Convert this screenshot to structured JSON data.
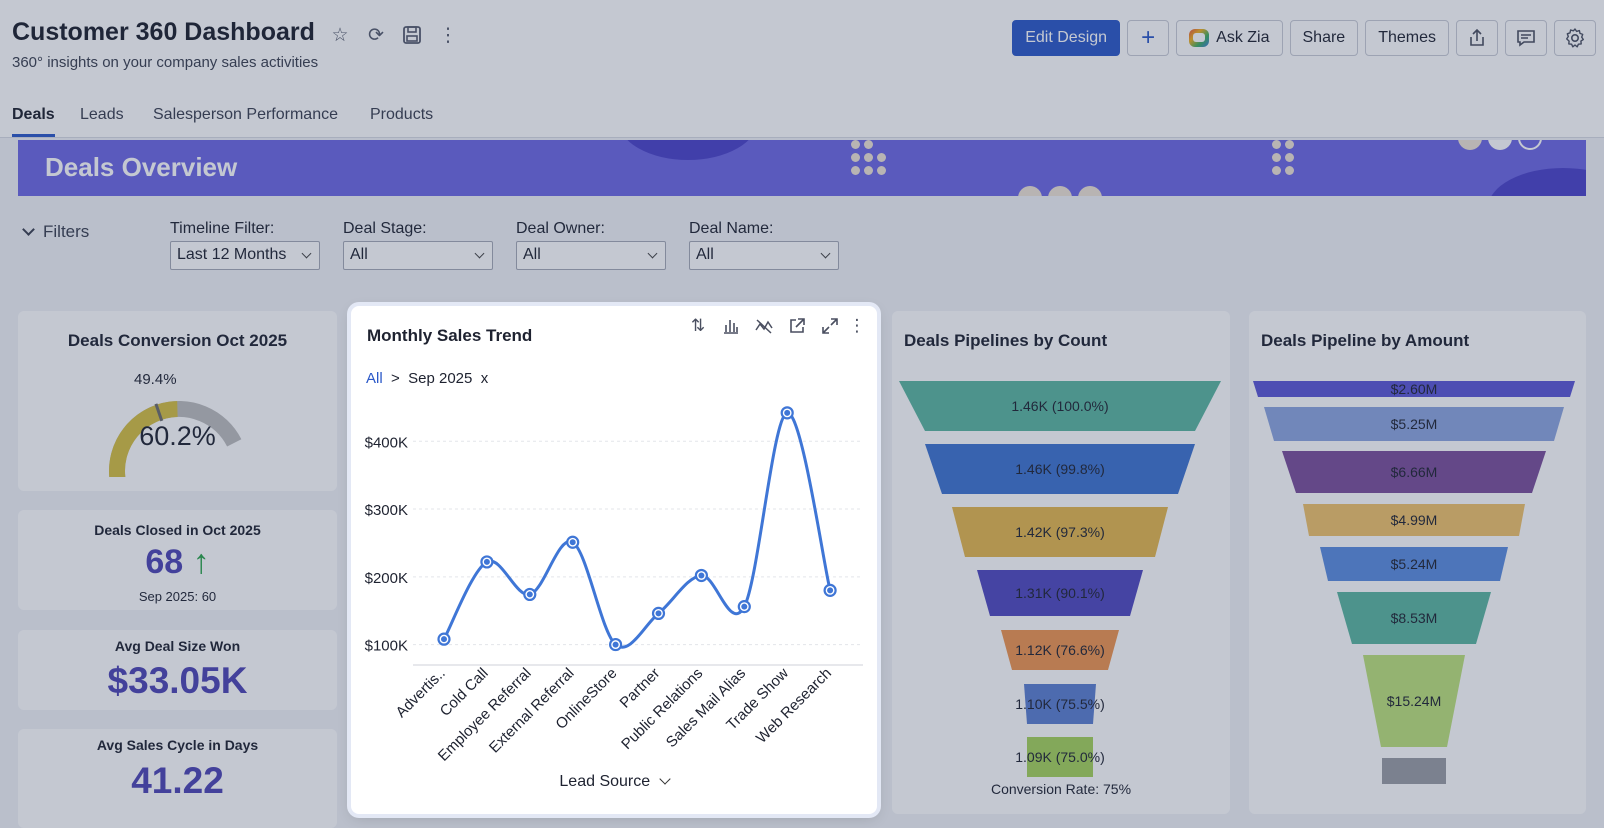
{
  "header": {
    "title": "Customer 360 Dashboard",
    "subtitle": "360° insights on your company sales activities"
  },
  "actions": {
    "edit_design": "Edit Design",
    "ask_zia": "Ask Zia",
    "share": "Share",
    "themes": "Themes"
  },
  "tabs": [
    {
      "label": "Deals"
    },
    {
      "label": "Leads"
    },
    {
      "label": "Salesperson Performance"
    },
    {
      "label": "Products"
    }
  ],
  "banner": {
    "title": "Deals Overview"
  },
  "filters": {
    "toggle_label": "Filters",
    "items": [
      {
        "label": "Timeline Filter:",
        "value": "Last 12 Months"
      },
      {
        "label": "Deal Stage:",
        "value": "All"
      },
      {
        "label": "Deal Owner:",
        "value": "All"
      },
      {
        "label": "Deal Name:",
        "value": "All"
      }
    ]
  },
  "kpis": {
    "conversion": {
      "title": "Deals Conversion Oct 2025",
      "target_label": "49.4%",
      "value": "60.2%",
      "gauge_fraction": 0.602,
      "target_fraction": 0.494
    },
    "closed": {
      "title": "Deals Closed in Oct 2025",
      "value": "68",
      "trend": "↑",
      "compare": "Sep 2025: 60"
    },
    "avg_size": {
      "title": "Avg Deal Size Won",
      "value": "$33.05K"
    },
    "avg_cycle": {
      "title": "Avg Sales Cycle in Days",
      "value": "41.22"
    }
  },
  "trend_chart": {
    "title": "Monthly Sales Trend",
    "breadcrumb_root": "All",
    "breadcrumb_sep": ">",
    "breadcrumb_current": "Sep 2025",
    "breadcrumb_close": "x",
    "xlabel": "Lead Source"
  },
  "chart_data": [
    {
      "type": "line",
      "title": "Monthly Sales Trend",
      "xlabel": "Lead Source",
      "ylabel": "",
      "categories": [
        "Advertis..",
        "Cold Call",
        "Employee Referral",
        "External Referral",
        "OnlineStore",
        "Partner",
        "Public Relations",
        "Sales Mail Alias",
        "Trade Show",
        "Web Research"
      ],
      "series": [
        {
          "values": [
            108000,
            222000,
            174000,
            251000,
            100000,
            146000,
            202000,
            156000,
            442000,
            180000
          ]
        }
      ],
      "yticks": [
        100000,
        200000,
        300000,
        400000
      ],
      "ytick_labels": [
        "$100K",
        "$200K",
        "$300K",
        "$400K"
      ],
      "ylim": [
        92000,
        458000
      ],
      "grid": true,
      "color": "#3f76d6"
    },
    {
      "type": "funnel",
      "title": "Deals Pipelines by Count",
      "labels": [
        "1.46K (100.0%)",
        "1.46K (99.8%)",
        "1.42K (97.3%)",
        "1.31K (90.1%)",
        "1.12K (76.6%)",
        "1.10K (75.5%)",
        "1.09K (75.0%)"
      ],
      "values": [
        100.0,
        99.8,
        97.3,
        90.1,
        76.6,
        75.5,
        75.0
      ],
      "colors": [
        "#5bb6a0",
        "#3d73d0",
        "#e5b74d",
        "#5048c0",
        "#ef9550",
        "#5b7ed0",
        "#a5d35b"
      ],
      "footer": "Conversion Rate: 75%"
    },
    {
      "type": "funnel",
      "title": "Deals Pipeline by Amount",
      "labels": [
        "$2.60M",
        "$5.25M",
        "$6.66M",
        "$4.99M",
        "$5.24M",
        "$8.53M",
        "$15.24M",
        ""
      ],
      "colors": [
        "#5b56d6",
        "#8da6e0",
        "#7b4e9a",
        "#f0c36a",
        "#5b8de0",
        "#5bb6a0",
        "#bde27a",
        "#9a9da4"
      ]
    }
  ]
}
